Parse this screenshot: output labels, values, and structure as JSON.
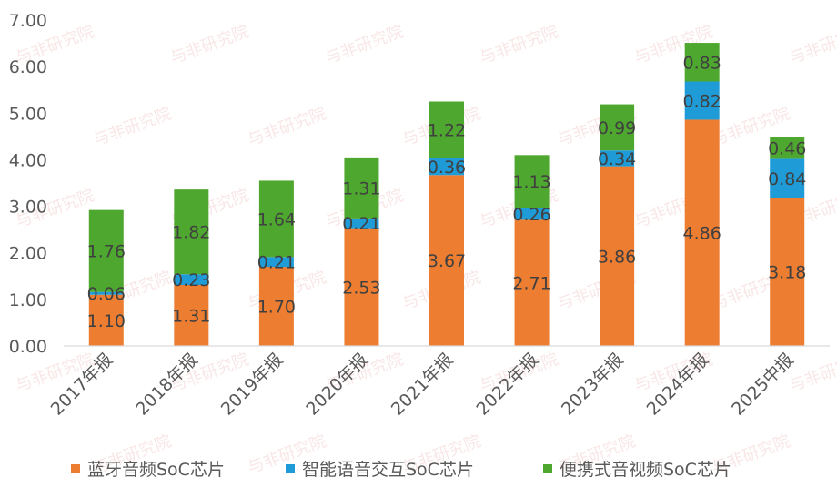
{
  "chart_data": {
    "type": "bar",
    "stacked": true,
    "categories": [
      "2017年报",
      "2018年报",
      "2019年报",
      "2020年报",
      "2021年报",
      "2022年报",
      "2023年报",
      "2024年报",
      "2025中报"
    ],
    "series": [
      {
        "name": "蓝牙音频SoC芯片",
        "color": "#ED7D31",
        "values": [
          1.1,
          1.31,
          1.7,
          2.53,
          3.67,
          2.71,
          3.86,
          4.86,
          3.18
        ],
        "labels": [
          "1.10",
          "1.31",
          "1.70",
          "2.53",
          "3.67",
          "2.71",
          "3.86",
          "4.86",
          "3.18"
        ]
      },
      {
        "name": "智能语音交互SoC芯片",
        "color": "#1F9BD7",
        "values": [
          0.06,
          0.23,
          0.21,
          0.21,
          0.36,
          0.26,
          0.34,
          0.82,
          0.84
        ],
        "labels": [
          "0.06",
          "0.23",
          "0.21",
          "0.21",
          "0.36",
          "0.26",
          "0.34",
          "0.82",
          "0.84"
        ]
      },
      {
        "name": "便携式音视频SoC芯片",
        "color": "#4EA72E",
        "values": [
          1.76,
          1.82,
          1.64,
          1.31,
          1.22,
          1.13,
          0.99,
          0.83,
          0.46
        ],
        "labels": [
          "1.76",
          "1.82",
          "1.64",
          "1.31",
          "1.22",
          "1.13",
          "0.99",
          "0.83",
          "0.46"
        ]
      }
    ],
    "yticks": [
      "0.00",
      "1.00",
      "2.00",
      "3.00",
      "4.00",
      "5.00",
      "6.00",
      "7.00"
    ],
    "ylim": [
      0,
      7
    ],
    "grid": false,
    "legend": "bottom",
    "watermark": "与非研究院"
  }
}
